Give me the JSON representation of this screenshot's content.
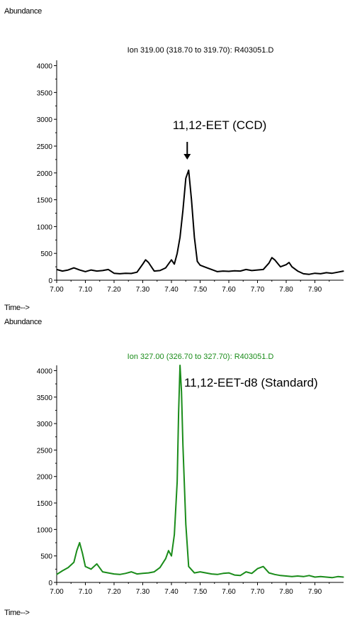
{
  "chart_data": [
    {
      "type": "line",
      "title": "Ion 319.00 (318.70 to 319.70): R403051.D",
      "ylabel": "Abundance",
      "xlabel": "Time-->",
      "xlim": [
        7.0,
        8.0
      ],
      "ylim": [
        0,
        4100
      ],
      "x_ticks": [
        "7.00",
        "7.10",
        "7.20",
        "7.30",
        "7.40",
        "7.50",
        "7.60",
        "7.70",
        "7.80",
        "7.90"
      ],
      "y_ticks": [
        "0",
        "500",
        "1000",
        "1500",
        "2000",
        "2500",
        "3000",
        "3500",
        "4000"
      ],
      "annotation": "11,12-EET (CCD)",
      "annotation_x": 7.455,
      "color": "#000000",
      "grid": false,
      "series": [
        {
          "x": [
            7.0,
            7.02,
            7.04,
            7.06,
            7.08,
            7.1,
            7.12,
            7.14,
            7.16,
            7.18,
            7.2,
            7.22,
            7.24,
            7.26,
            7.28,
            7.3,
            7.31,
            7.32,
            7.34,
            7.36,
            7.38,
            7.4,
            7.41,
            7.42,
            7.43,
            7.44,
            7.45,
            7.46,
            7.47,
            7.48,
            7.49,
            7.5,
            7.52,
            7.54,
            7.56,
            7.58,
            7.6,
            7.62,
            7.64,
            7.66,
            7.68,
            7.7,
            7.72,
            7.74,
            7.75,
            7.76,
            7.78,
            7.8,
            7.81,
            7.82,
            7.84,
            7.86,
            7.88,
            7.9,
            7.92,
            7.94,
            7.96,
            7.98,
            8.0
          ],
          "values": [
            200,
            170,
            190,
            230,
            190,
            160,
            190,
            170,
            180,
            200,
            130,
            120,
            130,
            125,
            150,
            300,
            380,
            330,
            170,
            180,
            230,
            380,
            300,
            500,
            800,
            1300,
            1900,
            2050,
            1500,
            800,
            350,
            280,
            240,
            200,
            160,
            170,
            165,
            175,
            170,
            200,
            180,
            190,
            200,
            320,
            420,
            380,
            250,
            290,
            330,
            250,
            170,
            120,
            110,
            130,
            120,
            140,
            130,
            150,
            170
          ]
        }
      ]
    },
    {
      "type": "line",
      "title": "Ion 327.00 (326.70 to 327.70): R403051.D",
      "ylabel": "Abundance",
      "xlabel": "Time-->",
      "xlim": [
        7.0,
        8.0
      ],
      "ylim": [
        0,
        4100
      ],
      "x_ticks": [
        "7.00",
        "7.10",
        "7.20",
        "7.30",
        "7.40",
        "7.50",
        "7.60",
        "7.70",
        "7.80",
        "7.90"
      ],
      "y_ticks": [
        "0",
        "500",
        "1000",
        "1500",
        "2000",
        "2500",
        "3000",
        "3500",
        "4000"
      ],
      "annotation": "11,12-EET-d8 (Standard)",
      "color": "#1a8c1a",
      "grid": false,
      "series": [
        {
          "x": [
            7.0,
            7.02,
            7.04,
            7.06,
            7.07,
            7.08,
            7.09,
            7.1,
            7.12,
            7.14,
            7.16,
            7.18,
            7.2,
            7.22,
            7.24,
            7.26,
            7.28,
            7.3,
            7.32,
            7.34,
            7.36,
            7.38,
            7.39,
            7.4,
            7.41,
            7.42,
            7.425,
            7.43,
            7.435,
            7.44,
            7.45,
            7.46,
            7.48,
            7.5,
            7.52,
            7.54,
            7.56,
            7.58,
            7.6,
            7.62,
            7.64,
            7.66,
            7.68,
            7.7,
            7.72,
            7.74,
            7.76,
            7.78,
            7.8,
            7.82,
            7.84,
            7.86,
            7.88,
            7.9,
            7.92,
            7.94,
            7.96,
            7.98,
            8.0
          ],
          "values": [
            150,
            220,
            280,
            380,
            600,
            750,
            550,
            300,
            250,
            350,
            200,
            180,
            160,
            150,
            170,
            200,
            160,
            170,
            180,
            200,
            280,
            450,
            600,
            500,
            900,
            1900,
            3200,
            4100,
            3600,
            2600,
            1100,
            300,
            180,
            200,
            180,
            160,
            150,
            170,
            180,
            140,
            130,
            200,
            170,
            260,
            300,
            180,
            150,
            130,
            120,
            110,
            120,
            110,
            130,
            100,
            110,
            100,
            90,
            110,
            100
          ]
        }
      ]
    }
  ]
}
